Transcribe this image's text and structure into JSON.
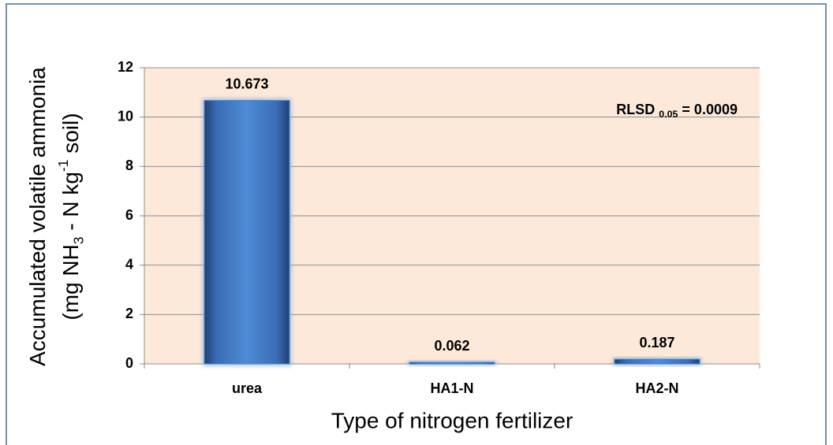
{
  "chart_data": {
    "type": "bar",
    "categories": [
      "urea",
      "HA1-N",
      "HA2-N"
    ],
    "values": [
      10.673,
      0.062,
      0.187
    ],
    "color": "#4f81bd",
    "ylim": [
      0,
      12
    ],
    "yticks": [
      0,
      2,
      4,
      6,
      8,
      10,
      12
    ],
    "grid": true,
    "x_label": "Type of nitrogen fertilizer",
    "y_label": [
      [
        {
          "text": "Accumulated volatile ammonia",
          "style": "normal"
        }
      ],
      [
        {
          "text": "(mg NH",
          "style": "normal"
        },
        {
          "text": "3",
          "style": "sub"
        },
        {
          "text": " - N kg",
          "style": "normal"
        },
        {
          "text": "-1",
          "style": "super"
        },
        {
          "text": " soil)",
          "style": "normal"
        }
      ]
    ],
    "annotation": [
      {
        "text": "RLSD ",
        "style": "normal"
      },
      {
        "text": "0.05",
        "style": "sub"
      },
      {
        "text": " = 0.0009",
        "style": "normal"
      }
    ]
  }
}
